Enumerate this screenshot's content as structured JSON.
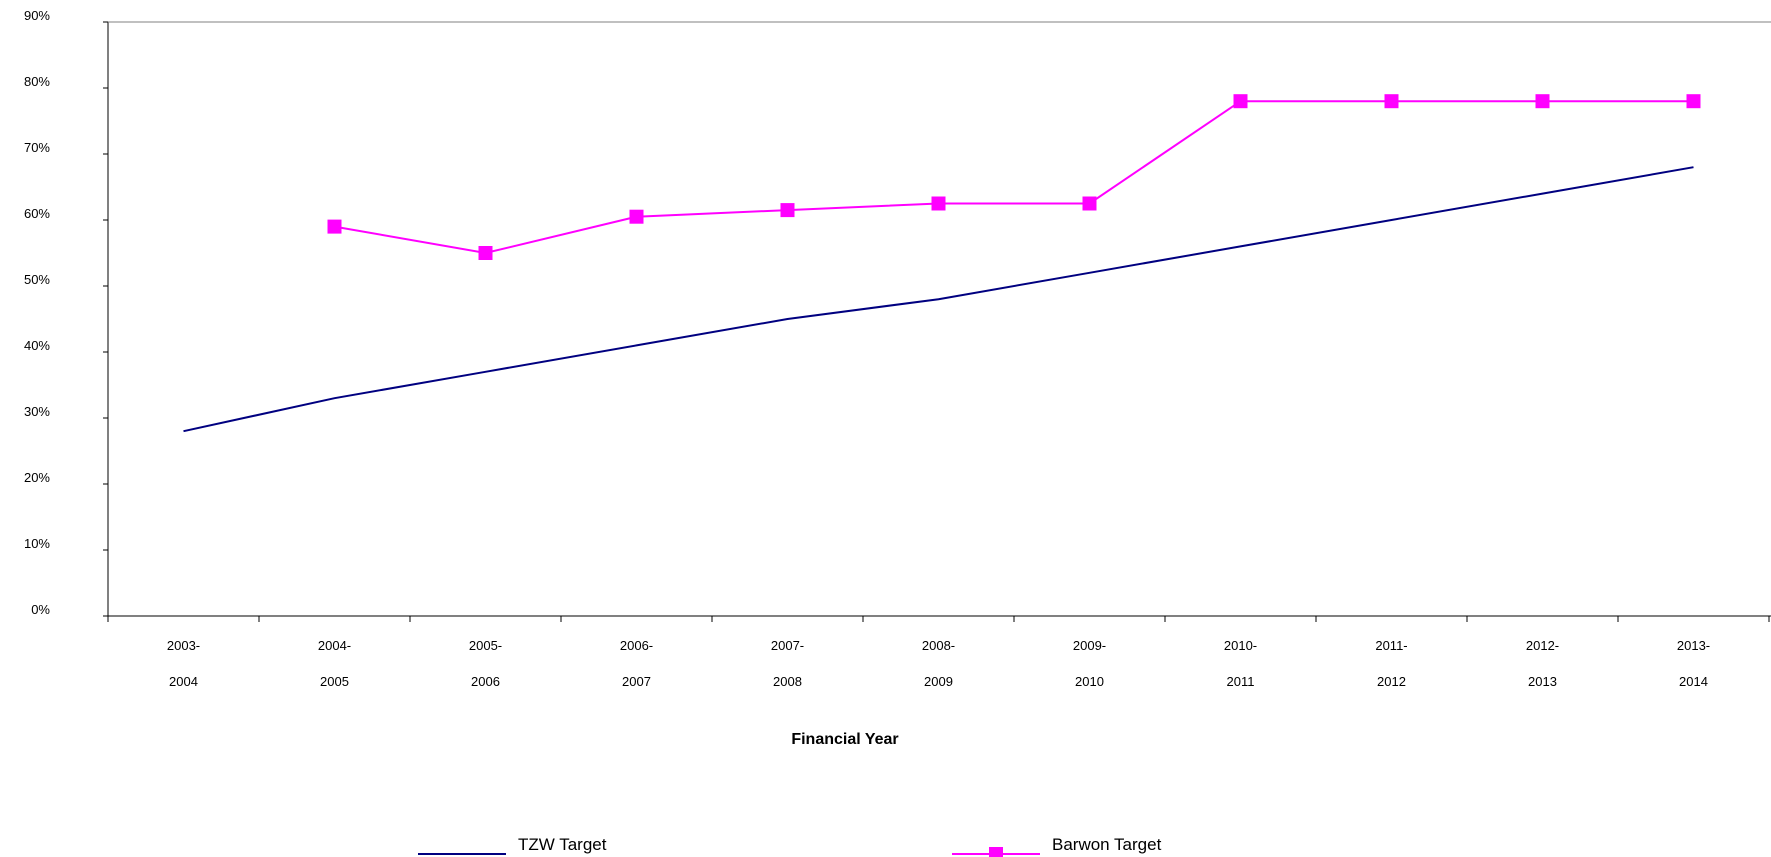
{
  "chart_data": {
    "type": "line",
    "xlabel": "Financial Year",
    "categories": [
      [
        "2003-",
        "2004"
      ],
      [
        "2004-",
        "2005"
      ],
      [
        "2005-",
        "2006"
      ],
      [
        "2006-",
        "2007"
      ],
      [
        "2007-",
        "2008"
      ],
      [
        "2008-",
        "2009"
      ],
      [
        "2009-",
        "2010"
      ],
      [
        "2010-",
        "2011"
      ],
      [
        "2011-",
        "2012"
      ],
      [
        "2012-",
        "2013"
      ],
      [
        "2013-",
        "2014"
      ]
    ],
    "y_ticks": [
      "0%",
      "10%",
      "20%",
      "30%",
      "40%",
      "50%",
      "60%",
      "70%",
      "80%",
      "90%"
    ],
    "ylim": [
      0,
      90
    ],
    "grid": false,
    "legend_position": "bottom",
    "series": [
      {
        "name": "TZW Target",
        "color": "#000080",
        "marker": "none",
        "values": [
          28,
          33,
          37,
          41,
          45,
          48,
          52,
          56,
          60,
          64,
          68
        ]
      },
      {
        "name": "Barwon Target",
        "color": "#ff00ff",
        "marker": "square",
        "values": [
          null,
          59,
          55,
          60.5,
          61.5,
          62.5,
          62.5,
          78,
          78,
          78,
          78
        ]
      }
    ]
  }
}
